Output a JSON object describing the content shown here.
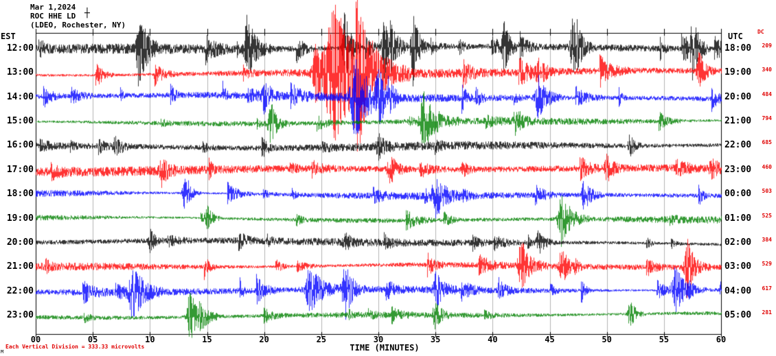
{
  "header": {
    "date": "Mar 1,2024",
    "station": "ROC HHE LD",
    "network": "(LDEO, Rochester, NY)",
    "scale_marker": "┼"
  },
  "axes": {
    "left_header": "EST",
    "right_header": "UTC",
    "dc_header": "DC",
    "xlabel": "TIME (MINUTES)",
    "x_ticks": [
      "00",
      "05",
      "10",
      "15",
      "20",
      "25",
      "30",
      "35",
      "40",
      "45",
      "50",
      "55",
      "60"
    ],
    "footnote": "Each Vertical Division = 333.33 microvolts",
    "corner_mark": "M"
  },
  "colors": {
    "trace_cycle": [
      "#000000",
      "#FF0000",
      "#0000FF",
      "#008000"
    ],
    "accent_red": "#e00000",
    "grid": "#808080",
    "frame": "#000000"
  },
  "chart_data": {
    "type": "line",
    "title": "ROC HHE LD helicorder seismogram, Mar 1,2024",
    "x_unit": "minutes",
    "x_range": [
      0,
      60
    ],
    "minutes_per_row": 60,
    "vertical_division_microvolts": 333.33,
    "rows": [
      {
        "est": "12:00",
        "utc": "18:00",
        "dc": 209,
        "color": "#000000",
        "amp": 8,
        "rate": 0.022,
        "spike": 24,
        "events": [
          {
            "min": 9,
            "amp": 40,
            "dur": 0.6
          },
          {
            "min": 18.5,
            "amp": 46,
            "dur": 0.7
          },
          {
            "min": 27,
            "amp": 38,
            "dur": 0.5
          },
          {
            "min": 30.5,
            "amp": 42,
            "dur": 0.6
          },
          {
            "min": 33,
            "amp": 55,
            "dur": 0.5
          },
          {
            "min": 41,
            "amp": 36,
            "dur": 0.5
          },
          {
            "min": 47,
            "amp": 46,
            "dur": 0.6
          },
          {
            "min": 57.5,
            "amp": 40,
            "dur": 0.5
          }
        ]
      },
      {
        "est": "13:00",
        "utc": "19:00",
        "dc": 340,
        "color": "#FF0000",
        "amp": 7.5,
        "rate": 0.015,
        "spike": 22,
        "events": [
          {
            "min": 24.5,
            "amp": 40,
            "dur": 0.8
          },
          {
            "min": 26.2,
            "amp": 95,
            "dur": 2.2
          },
          {
            "min": 28.2,
            "amp": 70,
            "dur": 1.0
          },
          {
            "min": 44,
            "amp": 26,
            "dur": 0.5
          },
          {
            "min": 58,
            "amp": 30,
            "dur": 0.5
          }
        ]
      },
      {
        "est": "14:00",
        "utc": "20:00",
        "dc": 484,
        "color": "#0000FF",
        "amp": 6.5,
        "rate": 0.012,
        "spike": 20,
        "events": [
          {
            "min": 20,
            "amp": 22,
            "dur": 0.5
          },
          {
            "min": 28,
            "amp": 55,
            "dur": 1.2
          },
          {
            "min": 30,
            "amp": 30,
            "dur": 0.6
          },
          {
            "min": 44,
            "amp": 30,
            "dur": 0.7
          }
        ]
      },
      {
        "est": "15:00",
        "utc": "21:00",
        "dc": 794,
        "color": "#008000",
        "amp": 5.5,
        "rate": 0.01,
        "spike": 16,
        "events": [
          {
            "min": 20.5,
            "amp": 26,
            "dur": 0.6
          },
          {
            "min": 34,
            "amp": 40,
            "dur": 1.0
          },
          {
            "min": 42,
            "amp": 20,
            "dur": 0.5
          }
        ]
      },
      {
        "est": "16:00",
        "utc": "22:00",
        "dc": 685,
        "color": "#000000",
        "amp": 6.5,
        "rate": 0.012,
        "spike": 16,
        "events": [
          {
            "min": 7,
            "amp": 18,
            "dur": 0.5
          },
          {
            "min": 30,
            "amp": 16,
            "dur": 0.5
          },
          {
            "min": 52,
            "amp": 16,
            "dur": 0.4
          }
        ]
      },
      {
        "est": "17:00",
        "utc": "23:00",
        "dc": 460,
        "color": "#FF0000",
        "amp": 7,
        "rate": 0.014,
        "spike": 18,
        "events": [
          {
            "min": 11,
            "amp": 20,
            "dur": 0.5
          },
          {
            "min": 31,
            "amp": 22,
            "dur": 0.6
          },
          {
            "min": 50,
            "amp": 20,
            "dur": 0.5
          }
        ]
      },
      {
        "est": "18:00",
        "utc": "00:00",
        "dc": 503,
        "color": "#0000FF",
        "amp": 6,
        "rate": 0.01,
        "spike": 18,
        "events": [
          {
            "min": 13,
            "amp": 22,
            "dur": 0.5
          },
          {
            "min": 35,
            "amp": 28,
            "dur": 0.8
          },
          {
            "min": 48,
            "amp": 22,
            "dur": 0.6
          }
        ]
      },
      {
        "est": "19:00",
        "utc": "01:00",
        "dc": 525,
        "color": "#008000",
        "amp": 5.5,
        "rate": 0.01,
        "spike": 16,
        "events": [
          {
            "min": 15,
            "amp": 18,
            "dur": 0.4
          },
          {
            "min": 46,
            "amp": 40,
            "dur": 0.8
          }
        ]
      },
      {
        "est": "20:00",
        "utc": "02:00",
        "dc": 384,
        "color": "#000000",
        "amp": 6,
        "rate": 0.01,
        "spike": 16,
        "events": [
          {
            "min": 10,
            "amp": 16,
            "dur": 0.4
          },
          {
            "min": 27,
            "amp": 14,
            "dur": 0.4
          },
          {
            "min": 44,
            "amp": 18,
            "dur": 0.5
          }
        ]
      },
      {
        "est": "21:00",
        "utc": "03:00",
        "dc": 529,
        "color": "#FF0000",
        "amp": 6,
        "rate": 0.012,
        "spike": 20,
        "events": [
          {
            "min": 42.5,
            "amp": 34,
            "dur": 0.8
          },
          {
            "min": 46,
            "amp": 28,
            "dur": 0.6
          },
          {
            "min": 57,
            "amp": 30,
            "dur": 0.7
          }
        ]
      },
      {
        "est": "22:00",
        "utc": "04:00",
        "dc": 617,
        "color": "#0000FF",
        "amp": 6.5,
        "rate": 0.012,
        "spike": 22,
        "events": [
          {
            "min": 8.5,
            "amp": 38,
            "dur": 0.9
          },
          {
            "min": 24,
            "amp": 34,
            "dur": 1.0
          },
          {
            "min": 27,
            "amp": 28,
            "dur": 0.6
          },
          {
            "min": 35,
            "amp": 26,
            "dur": 0.6
          },
          {
            "min": 56,
            "amp": 32,
            "dur": 0.9
          }
        ]
      },
      {
        "est": "23:00",
        "utc": "05:00",
        "dc": 281,
        "color": "#008000",
        "amp": 4.5,
        "rate": 0.008,
        "spike": 14,
        "events": [
          {
            "min": 13.5,
            "amp": 38,
            "dur": 0.8
          },
          {
            "min": 35,
            "amp": 18,
            "dur": 0.5
          },
          {
            "min": 52,
            "amp": 20,
            "dur": 0.5
          }
        ]
      }
    ]
  }
}
